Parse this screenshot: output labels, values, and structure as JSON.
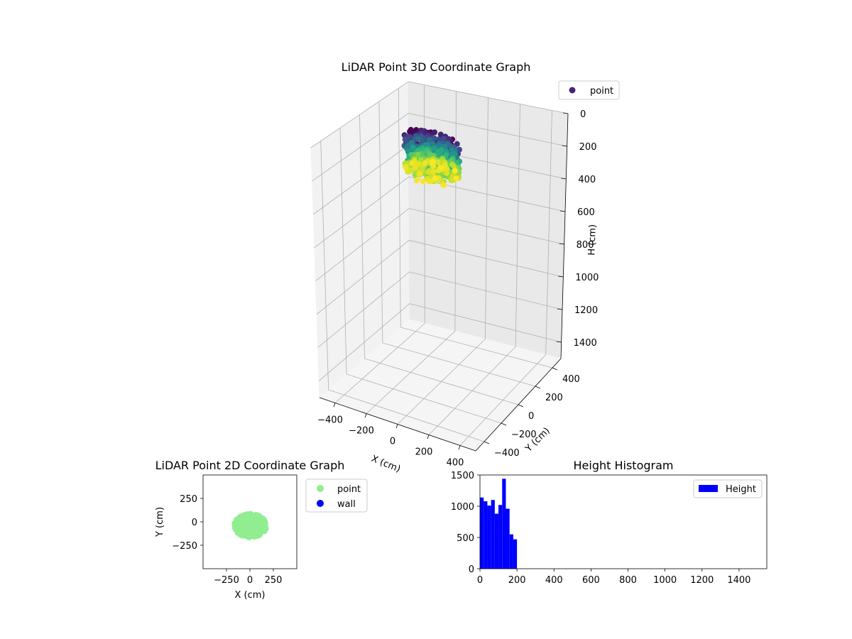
{
  "chart_data": [
    {
      "type": "scatter3d",
      "title": "LiDAR Point 3D Coordinate Graph",
      "xlabel": "X (cm)",
      "ylabel": "Y (cm)",
      "zlabel": "H (cm)",
      "xlim": [
        -500,
        500
      ],
      "ylim": [
        -500,
        500
      ],
      "zlim": [
        0,
        1500
      ],
      "z_inverted": true,
      "x_ticks": [
        -400,
        -200,
        0,
        200,
        400
      ],
      "y_ticks": [
        -400,
        -200,
        0,
        200,
        400
      ],
      "z_ticks": [
        0,
        200,
        400,
        600,
        800,
        1000,
        1200,
        1400
      ],
      "colormap": "viridis",
      "legend": [
        {
          "label": "point",
          "color": "#482576"
        }
      ],
      "legend_position": "top-right",
      "cloud": {
        "x_range": [
          -160,
          170
        ],
        "y_range": [
          -160,
          80
        ],
        "h_range": [
          0,
          210
        ]
      }
    },
    {
      "type": "scatter",
      "title": "LiDAR Point 2D Coordinate Graph",
      "xlabel": "X (cm)",
      "ylabel": "Y (cm)",
      "xlim": [
        -500,
        500
      ],
      "ylim": [
        -500,
        500
      ],
      "x_ticks": [
        -250,
        0,
        250
      ],
      "y_ticks": [
        -250,
        0,
        250
      ],
      "series": [
        {
          "name": "point",
          "color": "#90ee90",
          "x_range": [
            -160,
            170
          ],
          "y_range": [
            -160,
            80
          ]
        },
        {
          "name": "wall",
          "color": "#0000ff",
          "points": []
        }
      ],
      "legend_position": "outside-right"
    },
    {
      "type": "bar",
      "title": "Height Histogram",
      "xlabel": "",
      "ylabel": "",
      "xlim": [
        0,
        1550
      ],
      "ylim": [
        0,
        1500
      ],
      "x_ticks": [
        0,
        200,
        400,
        600,
        800,
        1000,
        1200,
        1400
      ],
      "y_ticks": [
        0,
        500,
        1000,
        1500
      ],
      "bin_width": 20,
      "bin_starts": [
        0,
        20,
        40,
        60,
        80,
        100,
        120,
        140,
        160,
        180
      ],
      "values": [
        1140,
        1080,
        1010,
        1100,
        880,
        1020,
        1440,
        960,
        550,
        470
      ],
      "series_name": "Height",
      "color": "#0000ff",
      "legend_position": "top-right"
    }
  ]
}
